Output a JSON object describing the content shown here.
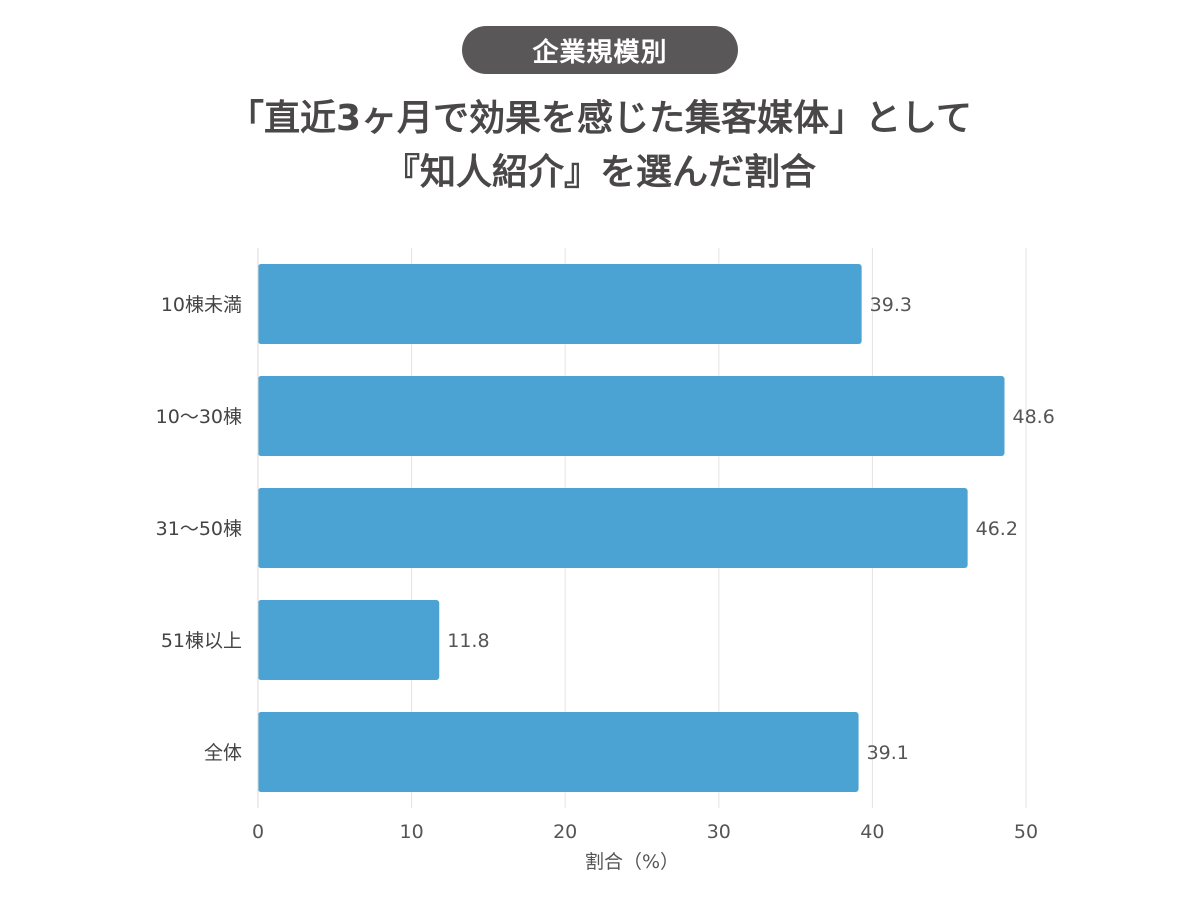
{
  "badge": "企業規模別",
  "title_lines": [
    "「直近3ヶ月で効果を感じた集客媒体」として",
    "『知人紹介』を選んだ割合"
  ],
  "chart_data": {
    "type": "bar",
    "orientation": "horizontal",
    "categories": [
      "10棟未満",
      "10〜30棟",
      "31〜50棟",
      "51棟以上",
      "全体"
    ],
    "values": [
      39.3,
      48.6,
      46.2,
      11.8,
      39.1
    ],
    "data_labels": [
      "39.3",
      "48.6",
      "46.2",
      "11.8",
      "39.1"
    ],
    "xlabel": "割合（%）",
    "xlim": [
      0,
      50
    ],
    "xticks": [
      0,
      10,
      20,
      30,
      40,
      50
    ],
    "grid": true,
    "bar_color": "#4aa3d2"
  }
}
